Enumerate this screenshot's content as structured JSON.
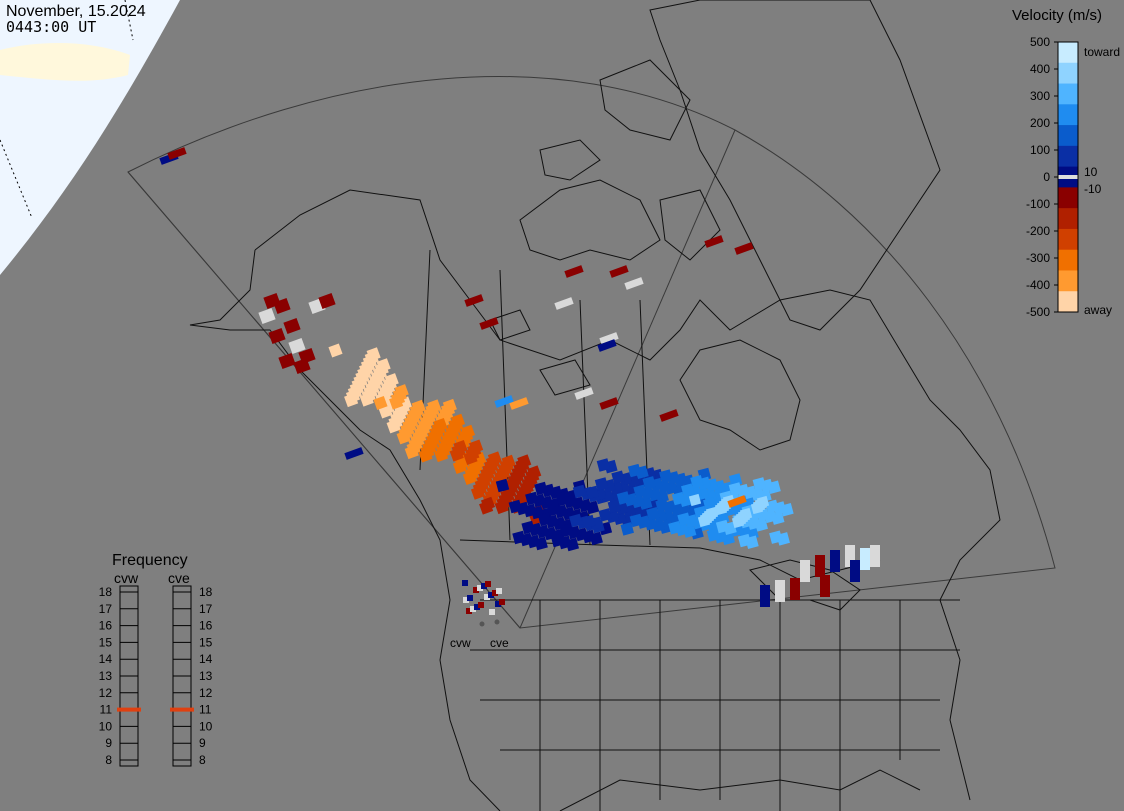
{
  "header": {
    "date": "November, 15.2024",
    "time": "0443:00 UT"
  },
  "radars": [
    {
      "code": "cvw"
    },
    {
      "code": "cve"
    }
  ],
  "velocity_scale": {
    "title": "Velocity (m/s)",
    "ticks": [
      "500",
      "400",
      "300",
      "200",
      "100",
      "0",
      "-100",
      "-200",
      "-300",
      "-400",
      "-500"
    ],
    "positive_threshold": "10",
    "negative_threshold": "-10",
    "toward_label": "toward",
    "away_label": "away",
    "colors": [
      "#c8ecff",
      "#8fd3ff",
      "#4fb4ff",
      "#1f8cf0",
      "#0a5ccc",
      "#0a2fa5",
      "#000c84",
      "#8a0000",
      "#b02000",
      "#d04000",
      "#f07000",
      "#ff9a30",
      "#ffd4a8"
    ]
  },
  "frequency": {
    "title": "Frequency",
    "levels": [
      "18",
      "17",
      "16",
      "15",
      "14",
      "13",
      "12",
      "11",
      "10",
      "9",
      "8"
    ],
    "cvw_value": 11,
    "cve_value": 11,
    "marker_color": "#e04010"
  }
}
